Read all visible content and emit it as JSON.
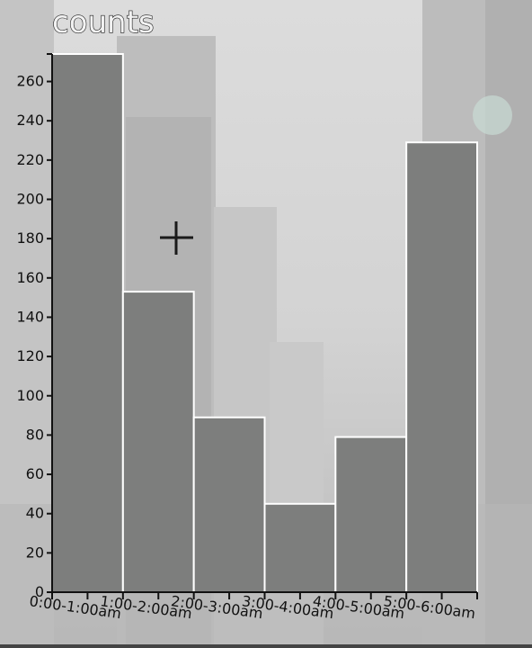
{
  "colors": {
    "bar_fill": "#7d7e7d",
    "bar_stroke": "#ffffff",
    "axis": "#111111"
  },
  "chart_data": {
    "type": "bar",
    "title": "counts",
    "xlabel": "",
    "ylabel": "",
    "categories": [
      "0:00-1:00am",
      "1:00-2:00am",
      "2:00-3:00am",
      "3:00-4:00am",
      "4:00-5:00am",
      "5:00-6:00am"
    ],
    "values": [
      274,
      153,
      89,
      45,
      79,
      229
    ],
    "ylim": [
      0,
      274
    ],
    "yticks": [
      0,
      20,
      40,
      60,
      80,
      100,
      120,
      140,
      160,
      180,
      200,
      220,
      240,
      260
    ],
    "grid": false,
    "legend": "none"
  },
  "cursor_icon": "crosshair-icon"
}
